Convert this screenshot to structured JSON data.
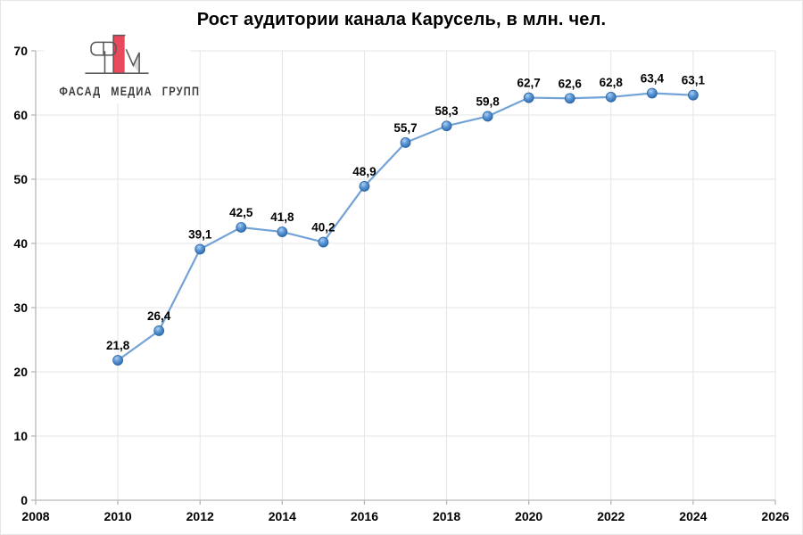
{
  "logo": {
    "text": "ФАСАД МЕДИА ГРУПП",
    "colors": {
      "red": "#e8495b",
      "outline": "#595959",
      "fill_light": "#d9d9d9",
      "text": "#3b3b3b"
    }
  },
  "chart_data": {
    "type": "line",
    "title": "Рост аудитории канала Карусель, в млн. чел.",
    "x": [
      2010,
      2011,
      2012,
      2013,
      2014,
      2015,
      2016,
      2017,
      2018,
      2019,
      2020,
      2021,
      2022,
      2023,
      2024
    ],
    "values": [
      21.8,
      26.4,
      39.1,
      42.5,
      41.8,
      40.2,
      48.9,
      55.7,
      58.3,
      59.8,
      62.7,
      62.6,
      62.8,
      63.4,
      63.1
    ],
    "point_labels": [
      "21,8",
      "26,4",
      "39,1",
      "42,5",
      "41,8",
      "40,2",
      "48,9",
      "55,7",
      "58,3",
      "59,8",
      "62,7",
      "62,6",
      "62,8",
      "63,4",
      "63,1"
    ],
    "xlabel": "",
    "ylabel": "",
    "xlim": [
      2008,
      2026
    ],
    "ylim": [
      0,
      70
    ],
    "x_ticks": [
      2008,
      2010,
      2012,
      2014,
      2016,
      2018,
      2020,
      2022,
      2024,
      2026
    ],
    "y_ticks": [
      0,
      10,
      20,
      30,
      40,
      50,
      60,
      70
    ],
    "grid": true,
    "legend": false,
    "colors": {
      "line": "#73a3d6",
      "marker_center": "#aecff2",
      "marker_mid": "#5b97d5",
      "marker_edge": "#2b67ac",
      "marker_stroke": "#2a66a8",
      "grid_line": "#e4e4e4",
      "axis_line": "#b7b7b7",
      "text": "#000000"
    }
  }
}
